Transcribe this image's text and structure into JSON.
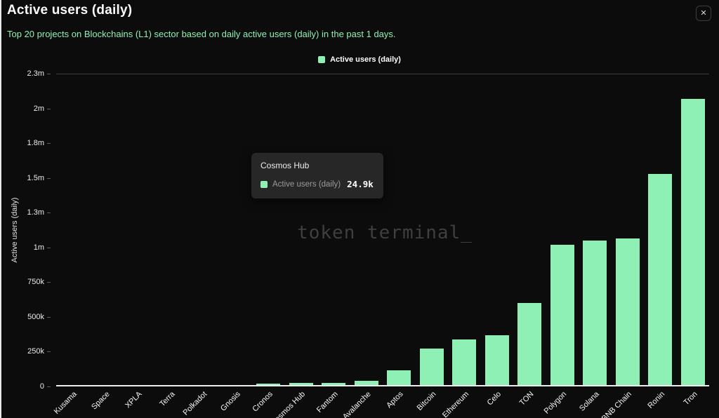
{
  "header": {
    "title": "Active users (daily)",
    "subtitle": "Top 20 projects on Blockchains (L1) sector based on daily active users (daily) in the past 1 days.",
    "close_glyph": "✕"
  },
  "legend": {
    "label": "Active users (daily)",
    "swatch_color": "#8ff0b5"
  },
  "watermark": "token terminal_",
  "tooltip": {
    "title": "Cosmos Hub",
    "series_label": "Active users (daily)",
    "value": "24.9k"
  },
  "chart_data": {
    "type": "bar",
    "title": "Active users (daily)",
    "xlabel": "",
    "ylabel": "Active users (daily)",
    "legend_position": "top",
    "grid": "top-line-only",
    "bar_color": "#8ff0b5",
    "ylim": [
      0,
      2250000
    ],
    "ytick_labels": [
      "2.3m",
      "2m",
      "1.8m",
      "1.5m",
      "1.3m",
      "1m",
      "750k",
      "500k",
      "250k",
      "0"
    ],
    "categories": [
      "Kusama",
      "Space",
      "XPLA",
      "Terra",
      "Polkadot",
      "Gnosis",
      "Cronos",
      "Cosmos Hub",
      "Fantom",
      "Avalanche",
      "Aptos",
      "Bitcoin",
      "Ethereum",
      "Celo",
      "TON",
      "Polygon",
      "Solana",
      "BNB Chain",
      "Ronin",
      "Tron"
    ],
    "series": [
      {
        "name": "Active users (daily)",
        "values": [
          1000,
          1800,
          2500,
          4000,
          5200,
          8000,
          18000,
          24900,
          25000,
          38000,
          116000,
          273000,
          338000,
          369000,
          600000,
          1020000,
          1050000,
          1065000,
          1530000,
          2070000
        ]
      }
    ]
  }
}
